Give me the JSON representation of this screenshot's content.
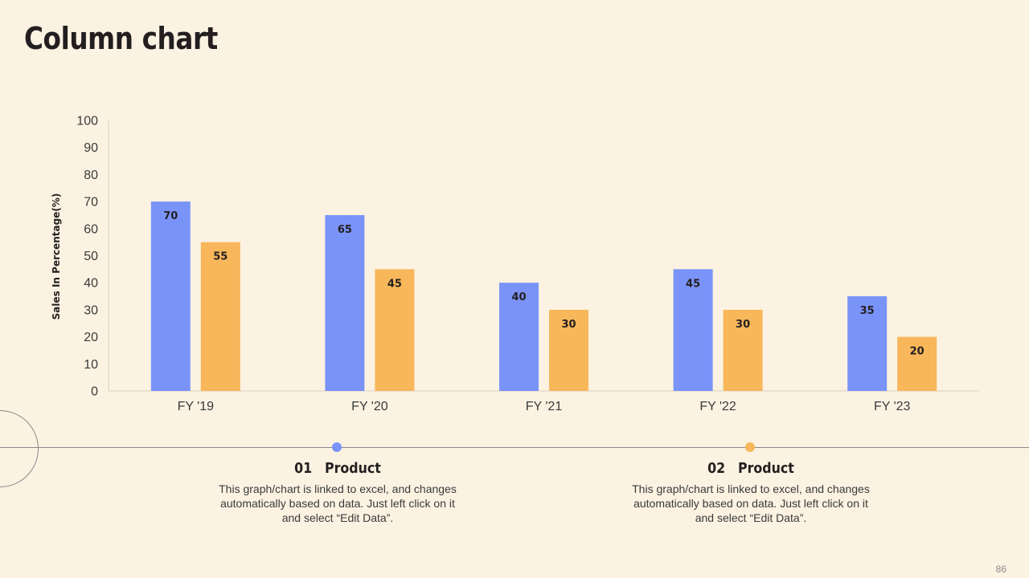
{
  "title": "Column chart",
  "page_number": "86",
  "legend": [
    {
      "number": "01",
      "label": "Product",
      "description": "This graph/chart is linked to excel, and changes automatically based on data. Just left click on it and select “Edit Data”."
    },
    {
      "number": "02",
      "label": "Product",
      "description": "This graph/chart is linked to excel, and changes automatically based on data. Just left click on it and select “Edit Data”."
    }
  ],
  "colors": {
    "background": "#FBF2E2",
    "series1": "#7A93F8",
    "series2": "#F7B75A",
    "text": "#231f20"
  },
  "chart_data": {
    "type": "bar",
    "title": "",
    "xlabel": "",
    "ylabel": "Sales In Percentage(%)",
    "categories": [
      "FY '19",
      "FY '20",
      "FY '21",
      "FY '22",
      "FY '23"
    ],
    "series": [
      {
        "values": [
          70,
          65,
          40,
          45,
          35
        ],
        "color": "#7A93F8"
      },
      {
        "values": [
          55,
          45,
          30,
          30,
          20
        ],
        "color": "#F7B75A"
      }
    ],
    "ylim": [
      0,
      100
    ],
    "yticks": [
      0,
      10,
      20,
      30,
      40,
      50,
      60,
      70,
      80,
      90,
      100
    ],
    "grid": false,
    "data_labels": true
  }
}
